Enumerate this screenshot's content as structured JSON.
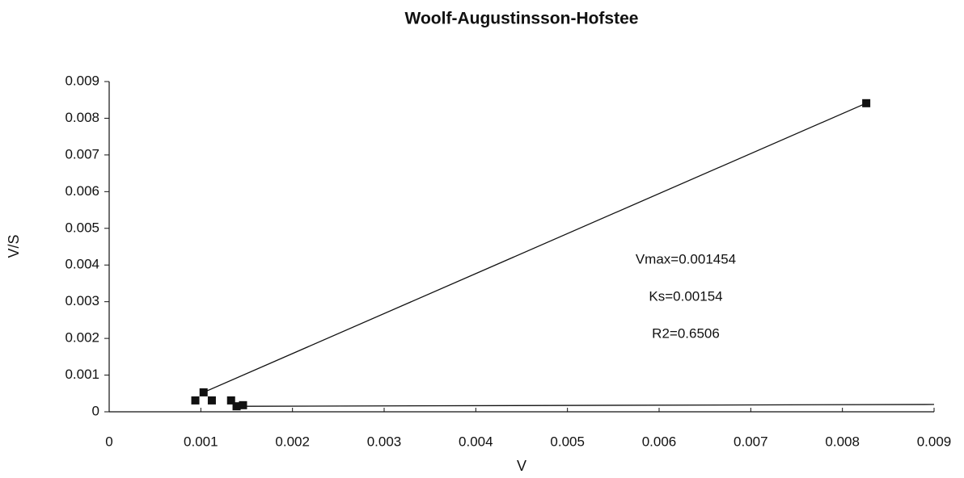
{
  "chart_data": {
    "type": "scatter",
    "title": "Woolf-Augustinsson-Hofstee",
    "xlabel": "V",
    "ylabel": "V/S",
    "xlim": [
      0,
      0.009
    ],
    "ylim": [
      0,
      0.009
    ],
    "xticks": [
      0,
      0.001,
      0.002,
      0.003,
      0.004,
      0.005,
      0.006,
      0.007,
      0.008,
      0.009
    ],
    "yticks": [
      0,
      0.001,
      0.002,
      0.003,
      0.004,
      0.005,
      0.006,
      0.007,
      0.008,
      0.009
    ],
    "series": [
      {
        "color": "#111111",
        "x": [
          0.00094,
          0.00103,
          0.00112,
          0.00133,
          0.00139,
          0.00146,
          0.00826
        ],
        "values": [
          0.00031,
          0.00053,
          0.00031,
          0.00031,
          0.00015,
          0.00018,
          0.00841
        ]
      }
    ],
    "lines": [
      {
        "x": [
          0.00103,
          0.00826
        ],
        "values": [
          0.00053,
          0.00841
        ]
      },
      {
        "x": [
          0.00146,
          0.009
        ],
        "values": [
          0.00015,
          0.0002
        ]
      }
    ],
    "annotations": [
      "Vmax=0.001454",
      "Ks=0.00154",
      "R2=0.6506"
    ]
  }
}
